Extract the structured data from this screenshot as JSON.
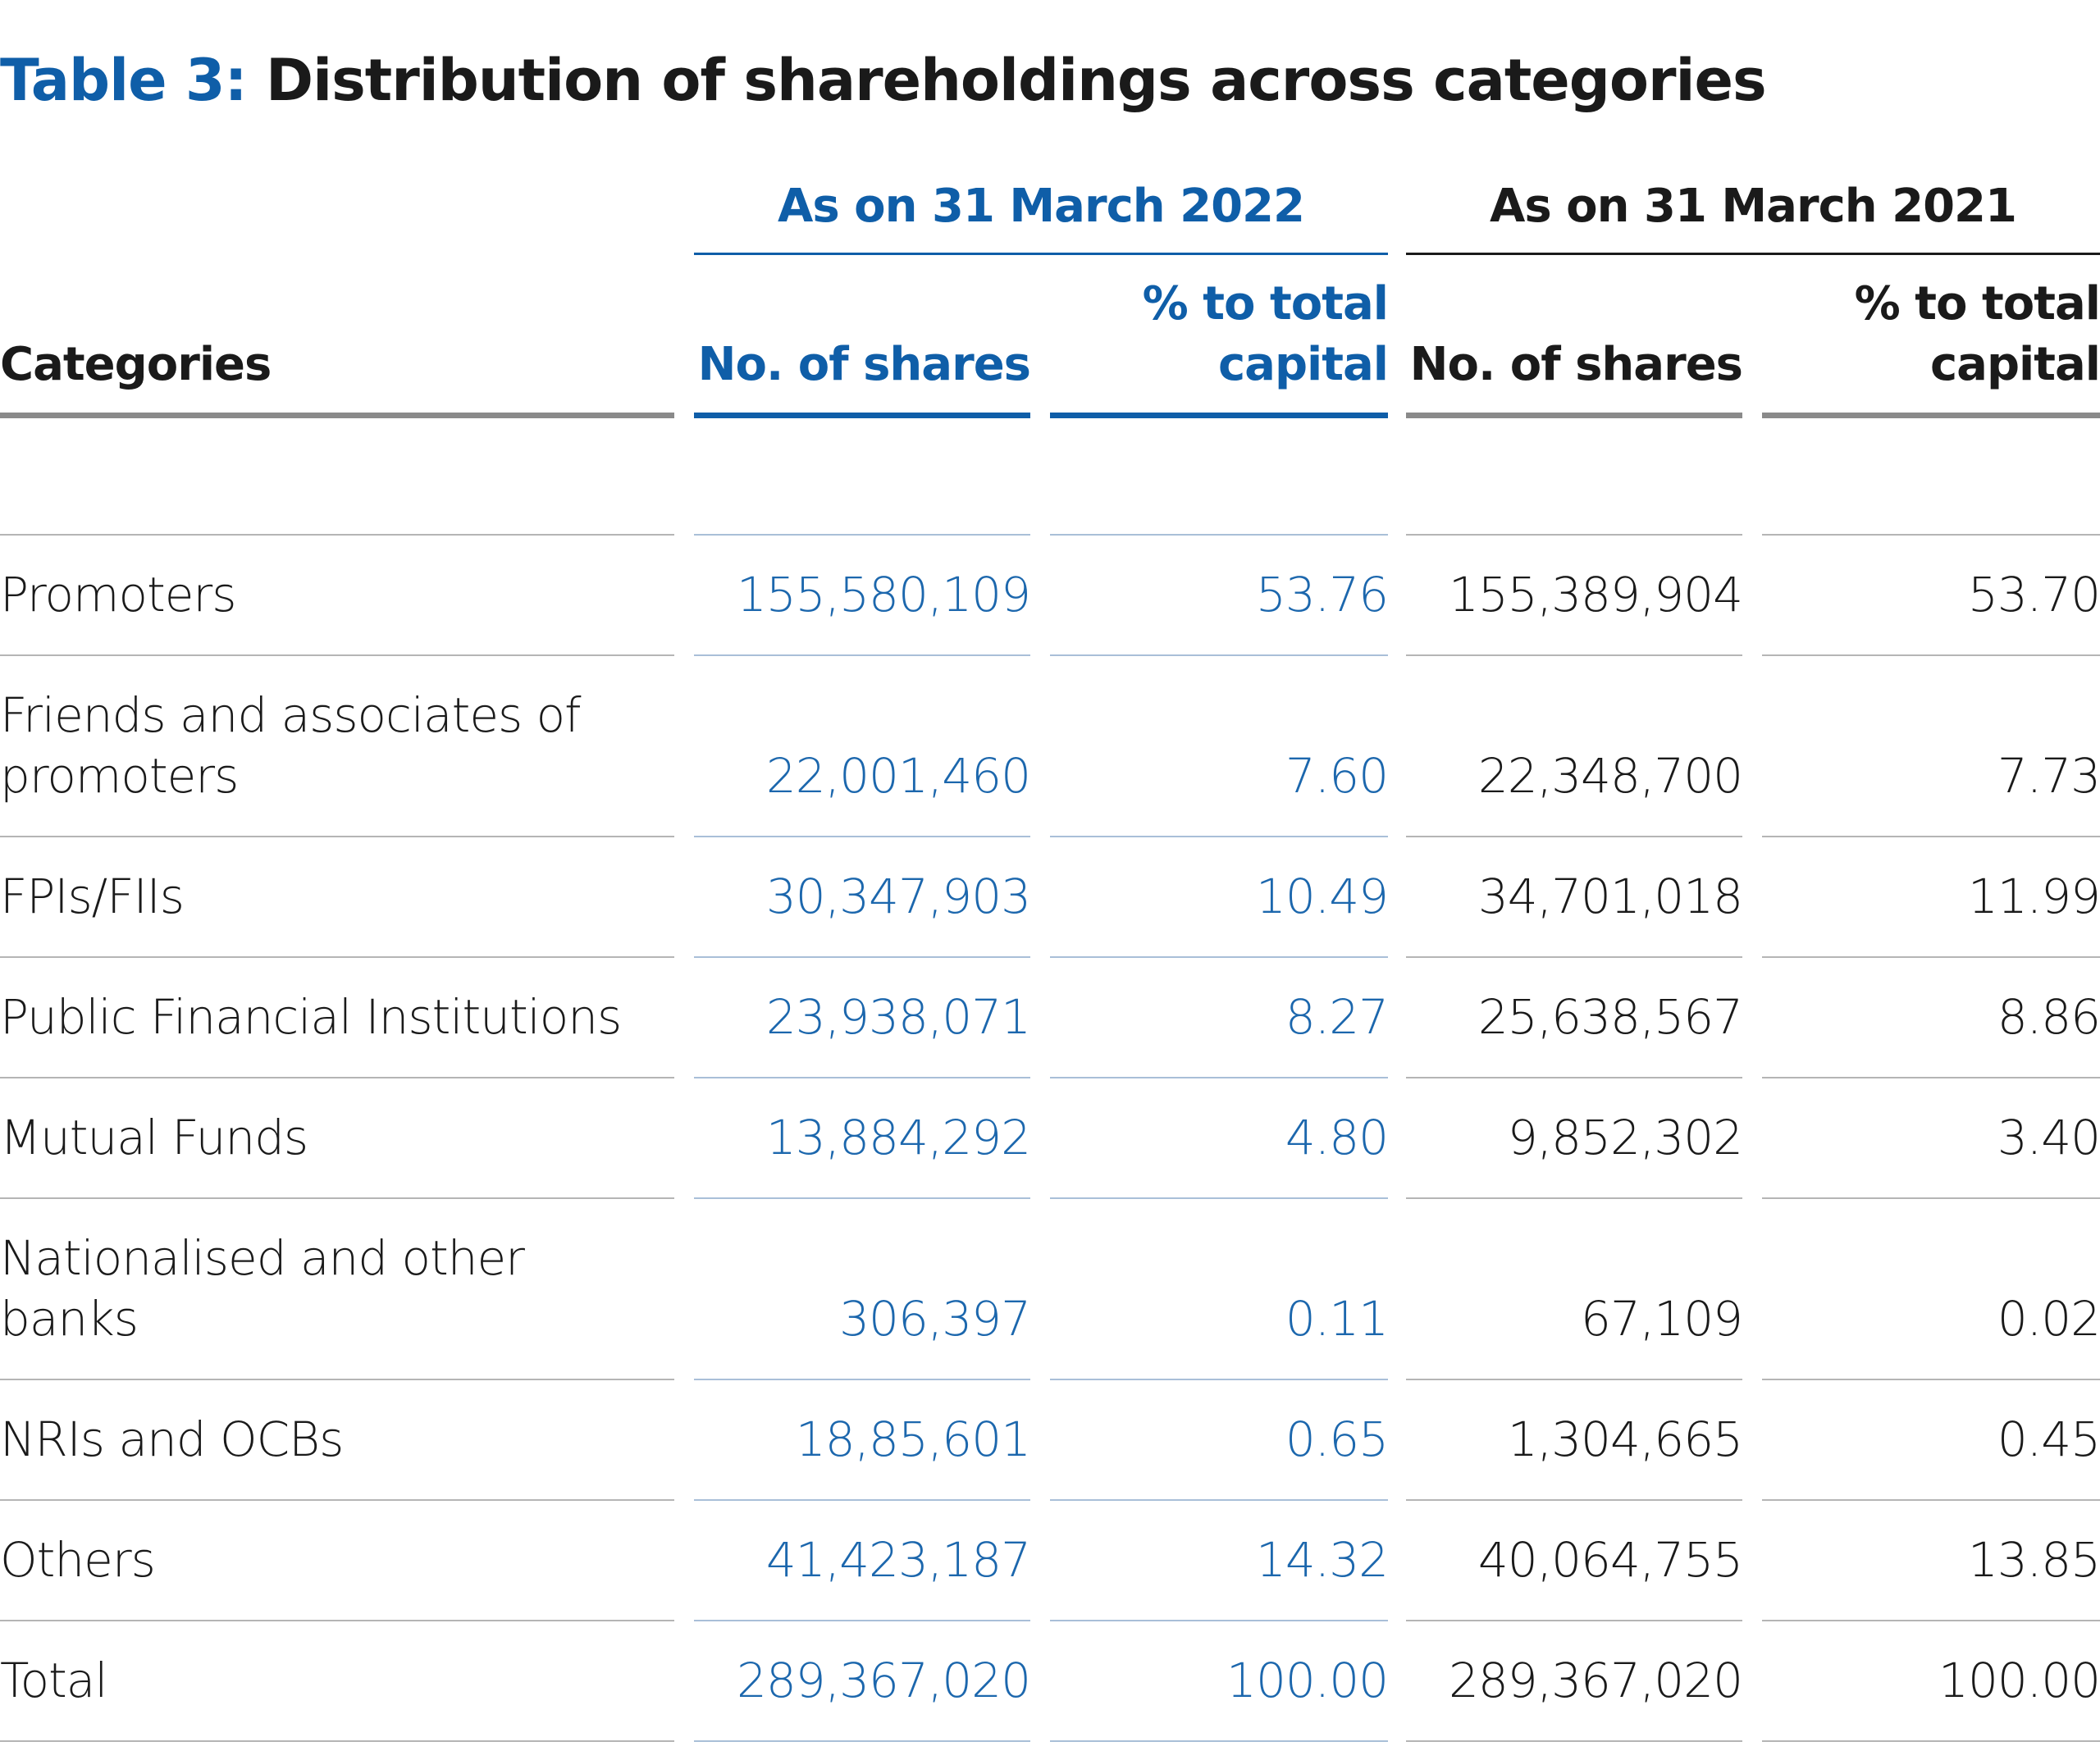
{
  "title": {
    "prefix": "Table 3:",
    "main": "Distribution of shareholdings across categories"
  },
  "colors": {
    "accent_blue": "#0f5ea8",
    "text_dark": "#1a1a1a",
    "header_rule_grey": "#8a8a8a",
    "row_rule_blue": "#a9bfd8",
    "row_rule_grey": "#b5b5b5"
  },
  "table": {
    "group_headers": [
      "As on 31 March 2022",
      "As on 31 March 2021"
    ],
    "columns": {
      "category": "Categories",
      "shares_2022": "No. of shares",
      "pct_2022": [
        "% to total",
        "capital"
      ],
      "shares_2021": "No. of shares",
      "pct_2021": [
        "% to total",
        "capital"
      ]
    },
    "rows": [
      {
        "category": [
          "Promoters"
        ],
        "shares_2022": "155,580,109",
        "pct_2022": "53.76",
        "shares_2021": "155,389,904",
        "pct_2021": "53.70"
      },
      {
        "category": [
          "Friends and associates of",
          "promoters"
        ],
        "shares_2022": "22,001,460",
        "pct_2022": "7.60",
        "shares_2021": "22,348,700",
        "pct_2021": "7.73"
      },
      {
        "category": [
          "FPIs/FIIs"
        ],
        "shares_2022": "30,347,903",
        "pct_2022": "10.49",
        "shares_2021": "34,701,018",
        "pct_2021": "11.99"
      },
      {
        "category": [
          "Public Financial Institutions"
        ],
        "shares_2022": "23,938,071",
        "pct_2022": "8.27",
        "shares_2021": "25,638,567",
        "pct_2021": "8.86"
      },
      {
        "category": [
          "Mutual Funds"
        ],
        "shares_2022": "13,884,292",
        "pct_2022": "4.80",
        "shares_2021": "9,852,302",
        "pct_2021": "3.40"
      },
      {
        "category": [
          "Nationalised and other",
          "banks"
        ],
        "shares_2022": "306,397",
        "pct_2022": "0.11",
        "shares_2021": "67,109",
        "pct_2021": "0.02"
      },
      {
        "category": [
          "NRIs and OCBs"
        ],
        "shares_2022": "18,85,601",
        "pct_2022": "0.65",
        "shares_2021": "1,304,665",
        "pct_2021": "0.45"
      },
      {
        "category": [
          "Others"
        ],
        "shares_2022": "41,423,187",
        "pct_2022": "14.32",
        "shares_2021": "40,064,755",
        "pct_2021": "13.85"
      },
      {
        "category": [
          "Total"
        ],
        "shares_2022": "289,367,020",
        "pct_2022": "100.00",
        "shares_2021": "289,367,020",
        "pct_2021": "100.00"
      }
    ]
  }
}
